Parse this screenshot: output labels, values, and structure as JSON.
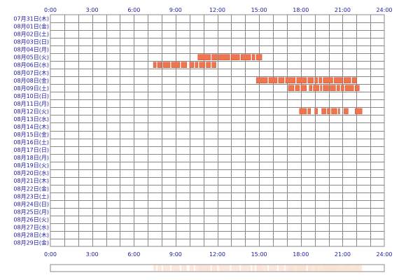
{
  "chart_data": {
    "type": "heatmap",
    "x_ticks": [
      "0:00",
      "3:00",
      "6:00",
      "9:00",
      "12:00",
      "15:00",
      "18:00",
      "21:00",
      "24:00"
    ],
    "x_range_hours": [
      0,
      24
    ],
    "grid": true,
    "rows": [
      {
        "label": "07月31日(木)",
        "segments": []
      },
      {
        "label": "08月01日(金)",
        "segments": []
      },
      {
        "label": "08月02日(土)",
        "segments": []
      },
      {
        "label": "08月03日(日)",
        "segments": []
      },
      {
        "label": "08月04日(月)",
        "segments": []
      },
      {
        "label": "08月05日(火)",
        "segments": [
          [
            10.6,
            11.5
          ],
          [
            11.6,
            12.0
          ],
          [
            12.1,
            12.9
          ],
          [
            13.0,
            13.6
          ],
          [
            13.7,
            14.4
          ],
          [
            14.5,
            14.7
          ],
          [
            14.8,
            15.2
          ]
        ]
      },
      {
        "label": "08月06日(水)",
        "segments": [
          [
            7.4,
            7.6
          ],
          [
            7.7,
            8.0
          ],
          [
            8.1,
            8.6
          ],
          [
            8.7,
            9.3
          ],
          [
            9.4,
            9.8
          ],
          [
            10.0,
            10.3
          ],
          [
            10.4,
            10.6
          ],
          [
            10.7,
            11.1
          ],
          [
            11.2,
            11.5
          ],
          [
            11.6,
            11.9
          ]
        ]
      },
      {
        "label": "08月07日(木)",
        "segments": []
      },
      {
        "label": "08月08日(金)",
        "segments": [
          [
            14.8,
            15.6
          ],
          [
            15.7,
            16.3
          ],
          [
            16.4,
            16.8
          ],
          [
            16.9,
            17.6
          ],
          [
            17.7,
            18.4
          ],
          [
            18.5,
            18.9
          ],
          [
            19.0,
            19.2
          ],
          [
            19.3,
            19.5
          ],
          [
            19.6,
            20.3
          ],
          [
            20.4,
            21.0
          ],
          [
            21.1,
            21.6
          ],
          [
            21.7,
            22.0
          ]
        ]
      },
      {
        "label": "08月09日(土)",
        "segments": [
          [
            17.1,
            17.5
          ],
          [
            17.6,
            17.9
          ],
          [
            18.0,
            18.4
          ],
          [
            18.6,
            18.8
          ],
          [
            18.9,
            19.3
          ],
          [
            19.4,
            19.5
          ],
          [
            19.6,
            20.0
          ],
          [
            20.1,
            20.5
          ],
          [
            20.6,
            20.8
          ],
          [
            20.9,
            21.1
          ],
          [
            21.2,
            21.8
          ],
          [
            21.9,
            22.2
          ]
        ]
      },
      {
        "label": "08月10日(日)",
        "segments": []
      },
      {
        "label": "08月11日(月)",
        "segments": []
      },
      {
        "label": "08月12日(火)",
        "segments": [
          [
            17.9,
            18.4
          ],
          [
            18.5,
            18.7
          ],
          [
            19.0,
            19.2
          ],
          [
            19.5,
            19.8
          ],
          [
            19.9,
            20.1
          ],
          [
            20.2,
            20.6
          ],
          [
            20.7,
            20.8
          ],
          [
            21.1,
            21.4
          ],
          [
            21.9,
            22.4
          ]
        ]
      },
      {
        "label": "08月13日(水)",
        "segments": []
      },
      {
        "label": "08月14日(木)",
        "segments": []
      },
      {
        "label": "08月15日(金)",
        "segments": []
      },
      {
        "label": "08月16日(土)",
        "segments": []
      },
      {
        "label": "08月17日(日)",
        "segments": []
      },
      {
        "label": "08月18日(月)",
        "segments": []
      },
      {
        "label": "08月19日(火)",
        "segments": []
      },
      {
        "label": "08月20日(水)",
        "segments": []
      },
      {
        "label": "08月21日(木)",
        "segments": []
      },
      {
        "label": "08月22日(金)",
        "segments": []
      },
      {
        "label": "08月23日(土)",
        "segments": []
      },
      {
        "label": "08月24日(日)",
        "segments": []
      },
      {
        "label": "08月25日(月)",
        "segments": []
      },
      {
        "label": "08月26日(火)",
        "segments": []
      },
      {
        "label": "08月27日(水)",
        "segments": []
      },
      {
        "label": "08月28日(木)",
        "segments": []
      },
      {
        "label": "08月29日(金)",
        "segments": []
      }
    ],
    "colors": {
      "bar": "#f0744c",
      "bar_edge": "#d04a26",
      "gap": "#ffffff",
      "grid": "#888888",
      "label": "#1a1aa0",
      "summary_light": "#fde2d4"
    }
  }
}
